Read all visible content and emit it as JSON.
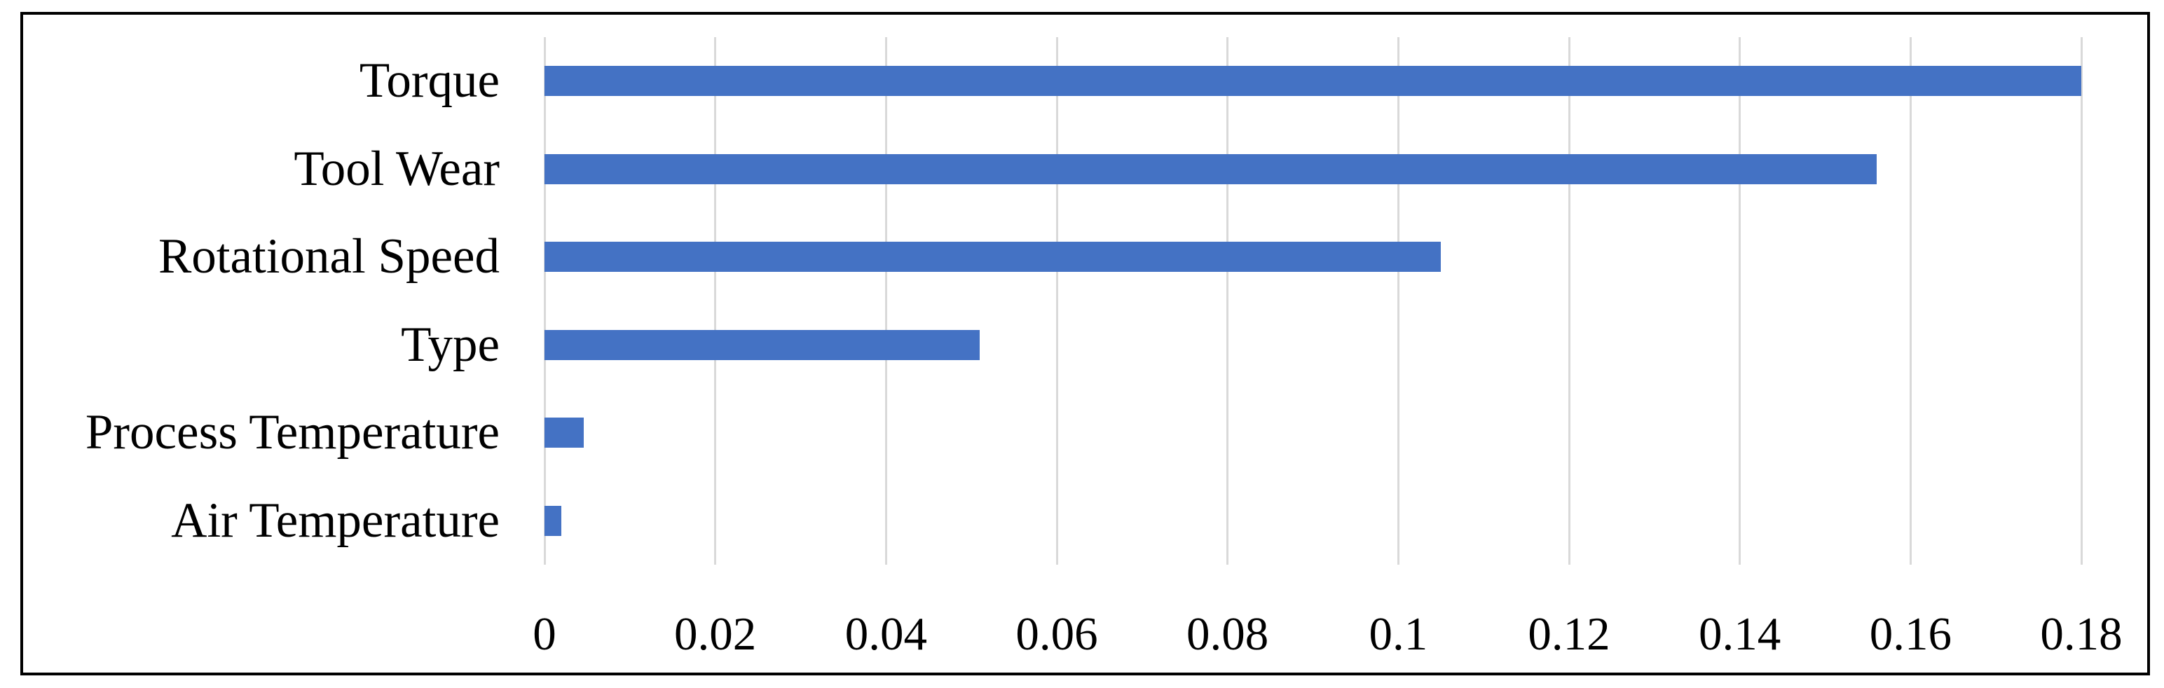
{
  "figure": {
    "background_color": "#ffffff",
    "border_color": "#000000",
    "text_color": "#000000"
  },
  "chart_data": {
    "type": "bar",
    "orientation": "horizontal",
    "title": "",
    "xlabel": "",
    "ylabel": "",
    "categories": [
      "Torque",
      "Tool Wear",
      "Rotational Speed",
      "Type",
      "Process Temperature",
      "Air Temperature"
    ],
    "values": [
      0.18,
      0.156,
      0.105,
      0.051,
      0.0046,
      0.002
    ],
    "xlim": [
      0,
      0.18
    ],
    "xticks": [
      0,
      0.02,
      0.04,
      0.06,
      0.08,
      0.1,
      0.12,
      0.14,
      0.16,
      0.18
    ],
    "xtick_labels": [
      "0",
      "0.02",
      "0.04",
      "0.06",
      "0.08",
      "0.1",
      "0.12",
      "0.14",
      "0.16",
      "0.18"
    ],
    "bar_color": "#4472C4",
    "gridline_color": "#D9D9D9",
    "grid": true,
    "legend": false
  }
}
